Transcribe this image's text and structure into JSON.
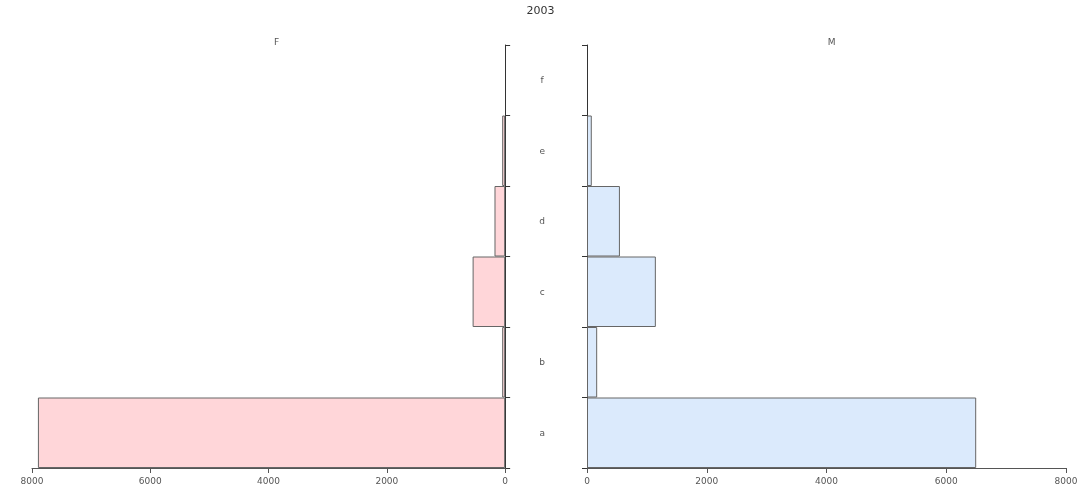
{
  "chart_data": [
    {
      "type": "bar",
      "orientation": "horizontal",
      "title": "2003",
      "categories": [
        "f",
        "e",
        "d",
        "c",
        "b",
        "a"
      ],
      "series": [
        {
          "name": "F",
          "color": "#ffd6d9",
          "values": [
            null,
            50,
            180,
            550,
            50,
            7900
          ]
        }
      ],
      "xlim": [
        8000,
        0
      ],
      "xticks": [
        8000,
        6000,
        4000,
        2000,
        0
      ],
      "grid": false,
      "legend": false
    },
    {
      "type": "bar",
      "orientation": "horizontal",
      "categories": [
        null,
        null,
        null,
        null,
        null,
        null
      ],
      "series": [
        {
          "name": "M",
          "color": "#dbeafc",
          "values": [
            null,
            80,
            550,
            1150,
            170,
            6500
          ]
        }
      ],
      "xlim": [
        0,
        8000
      ],
      "xticks": [
        0,
        2000,
        4000,
        6000,
        8000
      ],
      "tick_labels": "x",
      "grid": false,
      "legend": false
    }
  ]
}
